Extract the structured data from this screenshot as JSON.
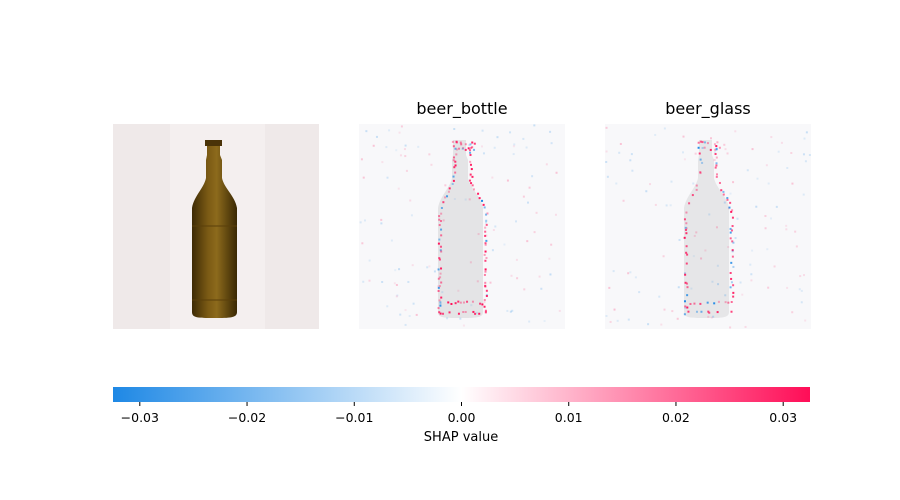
{
  "chart_data": {
    "type": "heatmap",
    "panels": [
      {
        "name": "input-image",
        "title": ""
      },
      {
        "name": "beer-bottle",
        "title": "beer_bottle"
      },
      {
        "name": "beer-glass",
        "title": "beer_glass"
      }
    ],
    "colorbar": {
      "label": "SHAP value",
      "range": [
        -0.0325,
        0.0325
      ],
      "ticks": [
        -0.03,
        -0.02,
        -0.01,
        0.0,
        0.01,
        0.02,
        0.03
      ],
      "tick_labels": [
        "−0.03",
        "−0.02",
        "−0.01",
        "0.00",
        "0.01",
        "0.02",
        "0.03"
      ],
      "colors": {
        "negative": "#1e88e5",
        "zero": "#ffffff",
        "positive": "#ff0d57"
      }
    },
    "grid": false
  }
}
